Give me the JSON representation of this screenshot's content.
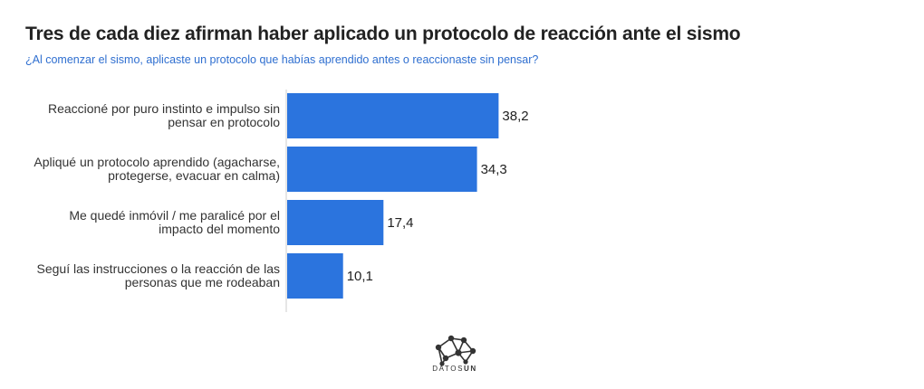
{
  "header": {
    "title": "Tres de cada diez afirman haber aplicado un protocolo de reacción ante el sismo",
    "subtitle": "¿Al comenzar el sismo, aplicaste un protocolo que habías aprendido antes o reaccionaste sin pensar?"
  },
  "chart_data": {
    "type": "bar",
    "orientation": "horizontal",
    "categories": [
      "Reaccioné por puro instinto e impulso sin pensar en protocolo",
      "Apliqué un protocolo aprendido (agacharse, protegerse, evacuar en calma)",
      "Me quedé inmóvil / me paralicé por el impacto del momento",
      "Seguí las instrucciones o la reacción de las personas que me rodeaban"
    ],
    "category_lines": [
      [
        "Reaccioné por puro instinto e impulso sin",
        "pensar en protocolo"
      ],
      [
        "Apliqué un protocolo aprendido (agacharse,",
        "protegerse, evacuar en calma)"
      ],
      [
        "Me quedé inmóvil / me paralicé por el",
        "impacto del momento"
      ],
      [
        "Seguí las instrucciones o la reacción de las",
        "personas que me rodeaban"
      ]
    ],
    "values": [
      38.2,
      34.3,
      17.4,
      10.1
    ],
    "value_labels": [
      "38,2",
      "34,3",
      "17,4",
      "10,1"
    ],
    "xlim": [
      0,
      100
    ],
    "bar_color": "#2b74de",
    "grid": false
  },
  "footer": {
    "logo_text_light": "DATOS",
    "logo_text_bold": "UN"
  }
}
